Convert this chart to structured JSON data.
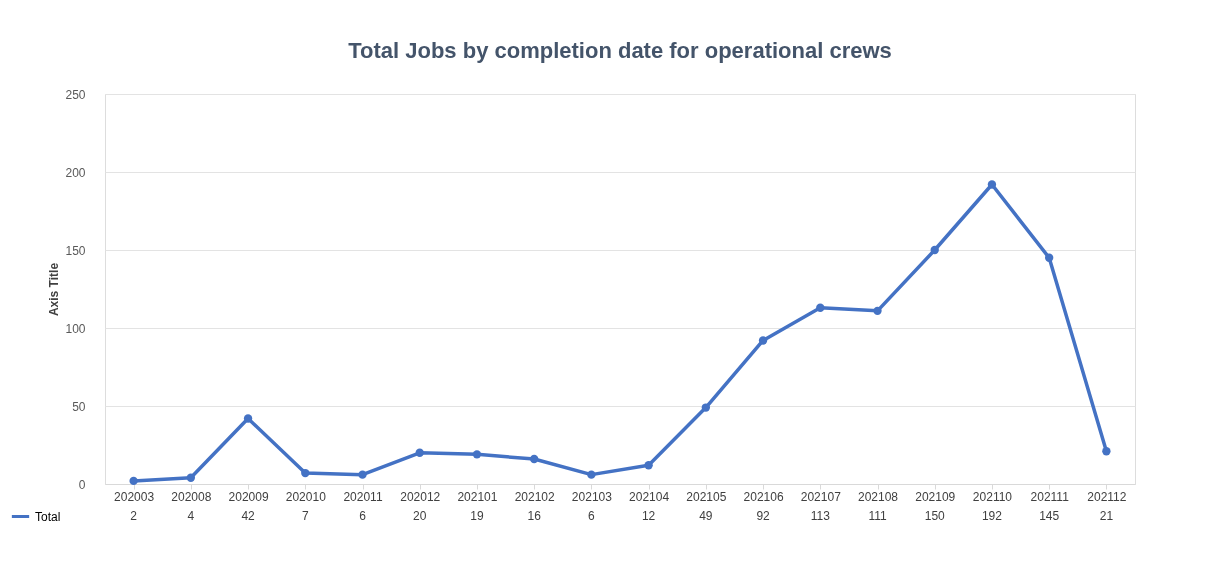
{
  "chart_data": {
    "type": "line",
    "title": "Total Jobs by completion date for operational crews",
    "ylabel": "Axis Title",
    "categories": [
      "202003",
      "202008",
      "202009",
      "202010",
      "202011",
      "202012",
      "202101",
      "202102",
      "202103",
      "202104",
      "202105",
      "202106",
      "202107",
      "202108",
      "202109",
      "202110",
      "202111",
      "202112"
    ],
    "series": [
      {
        "name": "Total",
        "color": "#4472c4",
        "values": [
          2,
          4,
          42,
          7,
          6,
          20,
          19,
          16,
          6,
          12,
          49,
          92,
          113,
          111,
          150,
          192,
          145,
          21
        ]
      }
    ],
    "ylim": [
      0,
      250
    ],
    "yticks": [
      0,
      50,
      100,
      150,
      200,
      250
    ],
    "grid": "y",
    "marker": "circle",
    "line_style": "solid",
    "legend": "bottom left",
    "data_labels": true
  }
}
